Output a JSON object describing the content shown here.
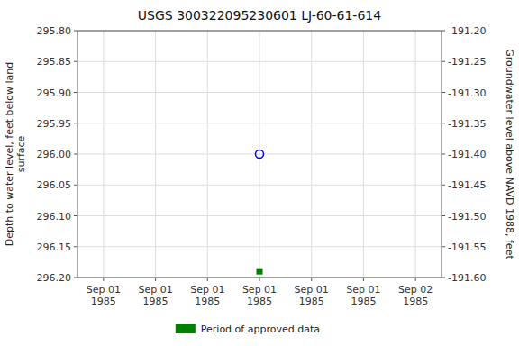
{
  "chart_data": {
    "type": "scatter",
    "title": "USGS 300322095230601 LJ-60-61-614",
    "y_label": "Depth to water level, feet below land\nsurface",
    "y2_label": "Groundwater level above NAVD 1988, feet",
    "categories": [
      "Sep 01\n1985",
      "Sep 01\n1985",
      "Sep 01\n1985",
      "Sep 01\n1985",
      "Sep 01\n1985",
      "Sep 01\n1985",
      "Sep 02\n1985"
    ],
    "series": [
      {
        "color": "#0000ff",
        "marker": "open-circle",
        "values": [
          null,
          null,
          null,
          296.0,
          null,
          null,
          null
        ]
      },
      {
        "name": "Period of approved data",
        "color": "#008000",
        "marker": "square",
        "values": [
          null,
          null,
          null,
          296.19,
          null,
          null,
          null
        ]
      }
    ],
    "ylim": [
      296.2,
      295.8
    ],
    "yticks": [
      {
        "value": 295.8,
        "label": "295.80"
      },
      295.85,
      {
        "value": 295.9,
        "label": "295.90"
      },
      295.95,
      {
        "value": 296.0,
        "label": "296.00"
      },
      296.05,
      {
        "value": 296.1,
        "label": "296.10"
      },
      296.15,
      {
        "value": 296.2,
        "label": "296.20"
      }
    ],
    "y2lim": [
      -191.6,
      -191.2
    ],
    "y2ticks": [
      {
        "value": -191.2,
        "label": "-191.20"
      },
      -191.25,
      {
        "value": -191.3,
        "label": "-191.30"
      },
      -191.35,
      {
        "value": -191.4,
        "label": "-191.40"
      },
      -191.45,
      {
        "value": -191.5,
        "label": "-191.50"
      },
      -191.55,
      {
        "value": -191.6,
        "label": "-191.60"
      }
    ],
    "grid": true,
    "legend": "bottom"
  }
}
